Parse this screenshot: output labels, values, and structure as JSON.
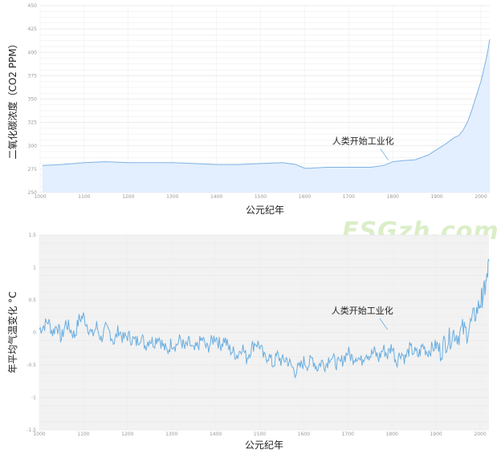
{
  "watermark": "ESGzh.com",
  "chart_data": [
    {
      "type": "area",
      "title": "",
      "xlabel": "公元纪年",
      "ylabel": "二氧化碳浓度（CO2 PPM）",
      "xlim": [
        1000,
        2020
      ],
      "ylim": [
        250,
        450
      ],
      "xticks": [
        1000,
        1100,
        1200,
        1300,
        1400,
        1500,
        1600,
        1700,
        1800,
        1900,
        2000
      ],
      "yticks": [
        250,
        275,
        300,
        325,
        350,
        375,
        400,
        425,
        450
      ],
      "annotation": {
        "text": "人类开始工业化",
        "x": 1790,
        "y": 283
      },
      "grid": true,
      "color": "#7fb2e5",
      "series": [
        {
          "x": [
            1005,
            1050,
            1100,
            1150,
            1200,
            1250,
            1300,
            1350,
            1400,
            1450,
            1500,
            1550,
            1580,
            1600,
            1610,
            1650,
            1700,
            1750,
            1780,
            1800,
            1820,
            1850,
            1880,
            1900,
            1920,
            1940,
            1950,
            1960,
            1970,
            1980,
            1990,
            2000,
            2010,
            2015,
            2020
          ],
          "y": [
            279,
            280,
            282,
            283,
            282,
            282,
            282,
            281,
            280,
            280,
            281,
            282,
            280,
            276,
            276,
            277,
            277,
            277,
            279,
            283,
            284,
            285,
            290,
            296,
            302,
            309,
            311,
            317,
            326,
            339,
            354,
            369,
            389,
            400,
            414
          ]
        }
      ]
    },
    {
      "type": "line",
      "title": "",
      "xlabel": "公元纪年",
      "ylabel": "年平均气温变化 °C",
      "xlim": [
        1000,
        2020
      ],
      "ylim": [
        -1.5,
        1.5
      ],
      "xticks": [
        1000,
        1100,
        1200,
        1300,
        1400,
        1500,
        1600,
        1700,
        1800,
        1900,
        2000
      ],
      "yticks": [
        -1.5,
        -1,
        -0.5,
        0,
        0.5,
        1,
        1.5
      ],
      "annotation": {
        "text": "人类开始工业化",
        "x": 1790,
        "y": 0.02
      },
      "grid": true,
      "color": "#6aaee0",
      "series": [
        {
          "x": [
            1000,
            1010,
            1020,
            1030,
            1040,
            1050,
            1060,
            1070,
            1080,
            1090,
            1100,
            1110,
            1120,
            1130,
            1140,
            1150,
            1160,
            1170,
            1180,
            1190,
            1200,
            1210,
            1220,
            1230,
            1240,
            1250,
            1260,
            1270,
            1280,
            1290,
            1300,
            1310,
            1320,
            1330,
            1340,
            1350,
            1360,
            1370,
            1380,
            1390,
            1400,
            1410,
            1420,
            1430,
            1440,
            1450,
            1460,
            1470,
            1480,
            1490,
            1500,
            1510,
            1520,
            1530,
            1540,
            1550,
            1560,
            1570,
            1580,
            1590,
            1600,
            1610,
            1620,
            1630,
            1640,
            1650,
            1660,
            1670,
            1680,
            1690,
            1700,
            1710,
            1720,
            1730,
            1740,
            1750,
            1760,
            1770,
            1780,
            1790,
            1800,
            1810,
            1820,
            1830,
            1840,
            1850,
            1860,
            1870,
            1880,
            1890,
            1900,
            1910,
            1920,
            1930,
            1940,
            1950,
            1960,
            1970,
            1980,
            1990,
            2000,
            2005,
            2010,
            2015,
            2020
          ],
          "y": [
            0.05,
            0.1,
            0.18,
            0.0,
            0.12,
            -0.1,
            0.15,
            0.05,
            -0.05,
            0.2,
            0.25,
            0.1,
            -0.05,
            0.1,
            -0.1,
            0.05,
            0.0,
            -0.15,
            0.05,
            -0.1,
            -0.05,
            -0.1,
            -0.15,
            -0.05,
            -0.2,
            -0.1,
            -0.15,
            -0.05,
            -0.2,
            -0.3,
            -0.15,
            -0.2,
            -0.1,
            -0.25,
            -0.15,
            -0.3,
            -0.2,
            -0.1,
            -0.25,
            -0.15,
            -0.05,
            -0.2,
            -0.1,
            -0.25,
            -0.3,
            -0.35,
            -0.2,
            -0.4,
            -0.25,
            -0.15,
            -0.2,
            -0.4,
            -0.35,
            -0.5,
            -0.35,
            -0.45,
            -0.4,
            -0.5,
            -0.6,
            -0.55,
            -0.45,
            -0.5,
            -0.4,
            -0.55,
            -0.45,
            -0.5,
            -0.35,
            -0.45,
            -0.5,
            -0.4,
            -0.3,
            -0.4,
            -0.35,
            -0.45,
            -0.3,
            -0.35,
            -0.3,
            -0.4,
            -0.25,
            -0.35,
            -0.2,
            -0.45,
            -0.3,
            -0.4,
            -0.25,
            -0.3,
            -0.35,
            -0.2,
            -0.3,
            -0.25,
            -0.2,
            -0.3,
            -0.15,
            -0.1,
            0.0,
            -0.05,
            0.05,
            0.0,
            0.15,
            0.3,
            0.45,
            0.55,
            0.65,
            0.8,
            1.1
          ]
        }
      ]
    }
  ]
}
